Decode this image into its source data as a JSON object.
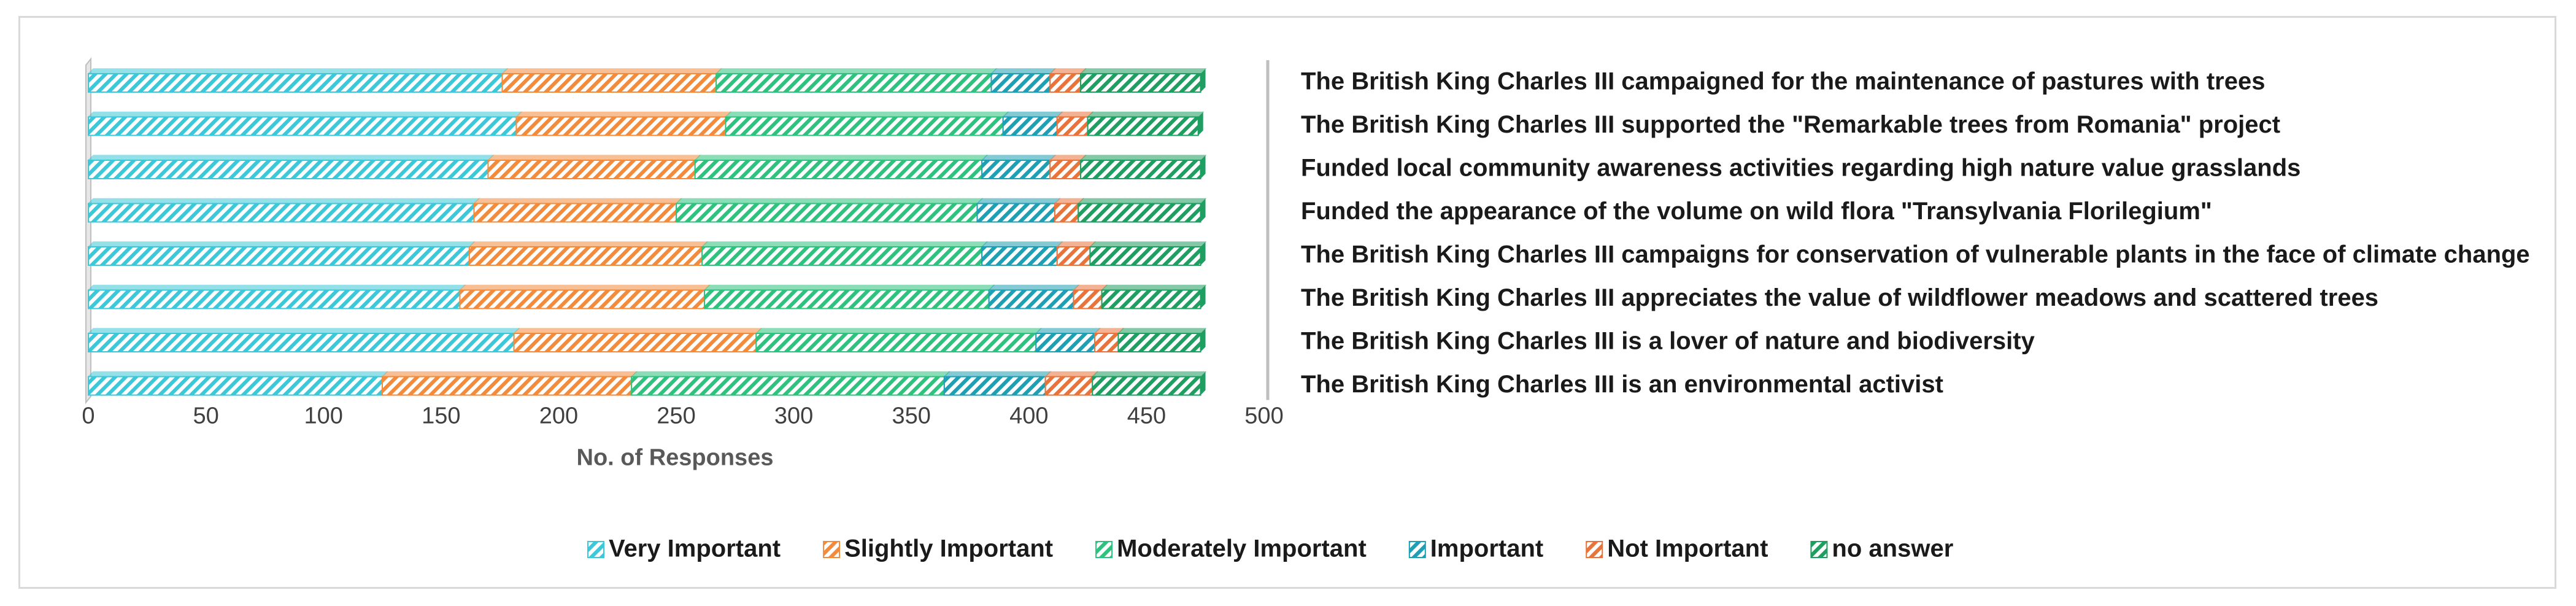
{
  "chart_data": {
    "type": "bar",
    "orientation": "horizontal",
    "stacked": true,
    "categories": [
      "The British King Charles III campaigned for the maintenance of pastures with trees",
      "The British King Charles III supported the \"Remarkable trees from Romania\" project",
      "Funded local community awareness activities regarding high nature value grasslands",
      "Funded the appearance of the volume on wild flora \"Transylvania Florilegium\"",
      "The British King Charles III campaigns for conservation of vulnerable plants in the face of climate change",
      "The British King Charles III appreciates the value of wildflower meadows and scattered trees",
      "The British King Charles III is a lover of nature and biodiversity",
      "The British King Charles III is an environmental activist"
    ],
    "series": [
      {
        "name": "Very Important",
        "color": "#3cc8d8",
        "values": [
          176,
          182,
          170,
          164,
          162,
          158,
          181,
          125
        ]
      },
      {
        "name": "Slightly Important",
        "color": "#f28c3c",
        "values": [
          91,
          89,
          88,
          86,
          99,
          104,
          103,
          106
        ]
      },
      {
        "name": "Moderately Important",
        "color": "#2ec27e",
        "values": [
          117,
          118,
          122,
          128,
          119,
          121,
          119,
          133
        ]
      },
      {
        "name": "Important",
        "color": "#1f9fb3",
        "values": [
          25,
          23,
          29,
          33,
          32,
          36,
          25,
          43
        ]
      },
      {
        "name": "Not Important",
        "color": "#e8743b",
        "values": [
          13,
          13,
          13,
          10,
          14,
          12,
          10,
          20
        ]
      },
      {
        "name": "no answer",
        "color": "#1e9e60",
        "values": [
          51,
          47,
          51,
          52,
          47,
          42,
          35,
          46
        ]
      }
    ],
    "xlabel": "No. of  Responses",
    "xlim": [
      0,
      500
    ],
    "xticks": [
      "0",
      "50",
      "100",
      "150",
      "200",
      "250",
      "300",
      "350",
      "400",
      "450",
      "500"
    ],
    "legend_position": "bottom",
    "grid": false
  }
}
